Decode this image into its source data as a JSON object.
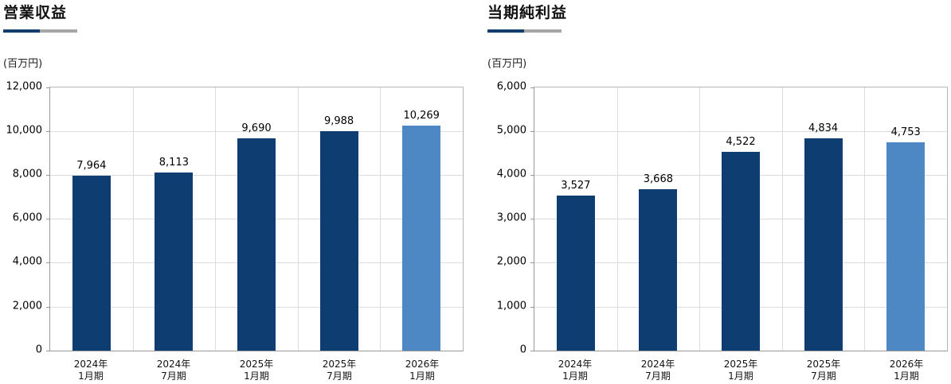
{
  "colors": {
    "bar": "#0e3e71",
    "bar_forecast": "#4e88c4",
    "accent_navy": "#123e6d",
    "accent_gray": "#a6a6a6",
    "gridline": "#dcdcdc",
    "axis": "#9a9a9a",
    "plot_border": "#b6b6b6",
    "text": "#000000"
  },
  "chart_data": [
    {
      "type": "bar",
      "title": "営業収益",
      "unit_label": "(百万円)",
      "categories": [
        [
          "2024年",
          "1月期"
        ],
        [
          "2024年",
          "7月期"
        ],
        [
          "2025年",
          "1月期"
        ],
        [
          "2025年",
          "7月期"
        ],
        [
          "2026年",
          "1月期"
        ]
      ],
      "values": [
        7964,
        8113,
        9690,
        9988,
        10269
      ],
      "value_labels": [
        "7,964",
        "8,113",
        "9,690",
        "9,988",
        "10,269"
      ],
      "ylim": [
        0,
        12000
      ],
      "ytick_step": 2000,
      "ytick_labels": [
        "0",
        "2,000",
        "4,000",
        "6,000",
        "8,000",
        "10,000",
        "12,000"
      ],
      "forecast_index": 4,
      "grid": true,
      "legend_position": "none",
      "xlabel": "",
      "ylabel": ""
    },
    {
      "type": "bar",
      "title": "当期純利益",
      "unit_label": "(百万円)",
      "categories": [
        [
          "2024年",
          "1月期"
        ],
        [
          "2024年",
          "7月期"
        ],
        [
          "2025年",
          "1月期"
        ],
        [
          "2025年",
          "7月期"
        ],
        [
          "2026年",
          "1月期"
        ]
      ],
      "values": [
        3527,
        3668,
        4522,
        4834,
        4753
      ],
      "value_labels": [
        "3,527",
        "3,668",
        "4,522",
        "4,834",
        "4,753"
      ],
      "ylim": [
        0,
        6000
      ],
      "ytick_step": 1000,
      "ytick_labels": [
        "0",
        "1,000",
        "2,000",
        "3,000",
        "4,000",
        "5,000",
        "6,000"
      ],
      "forecast_index": 4,
      "grid": true,
      "legend_position": "none",
      "xlabel": "",
      "ylabel": ""
    }
  ]
}
